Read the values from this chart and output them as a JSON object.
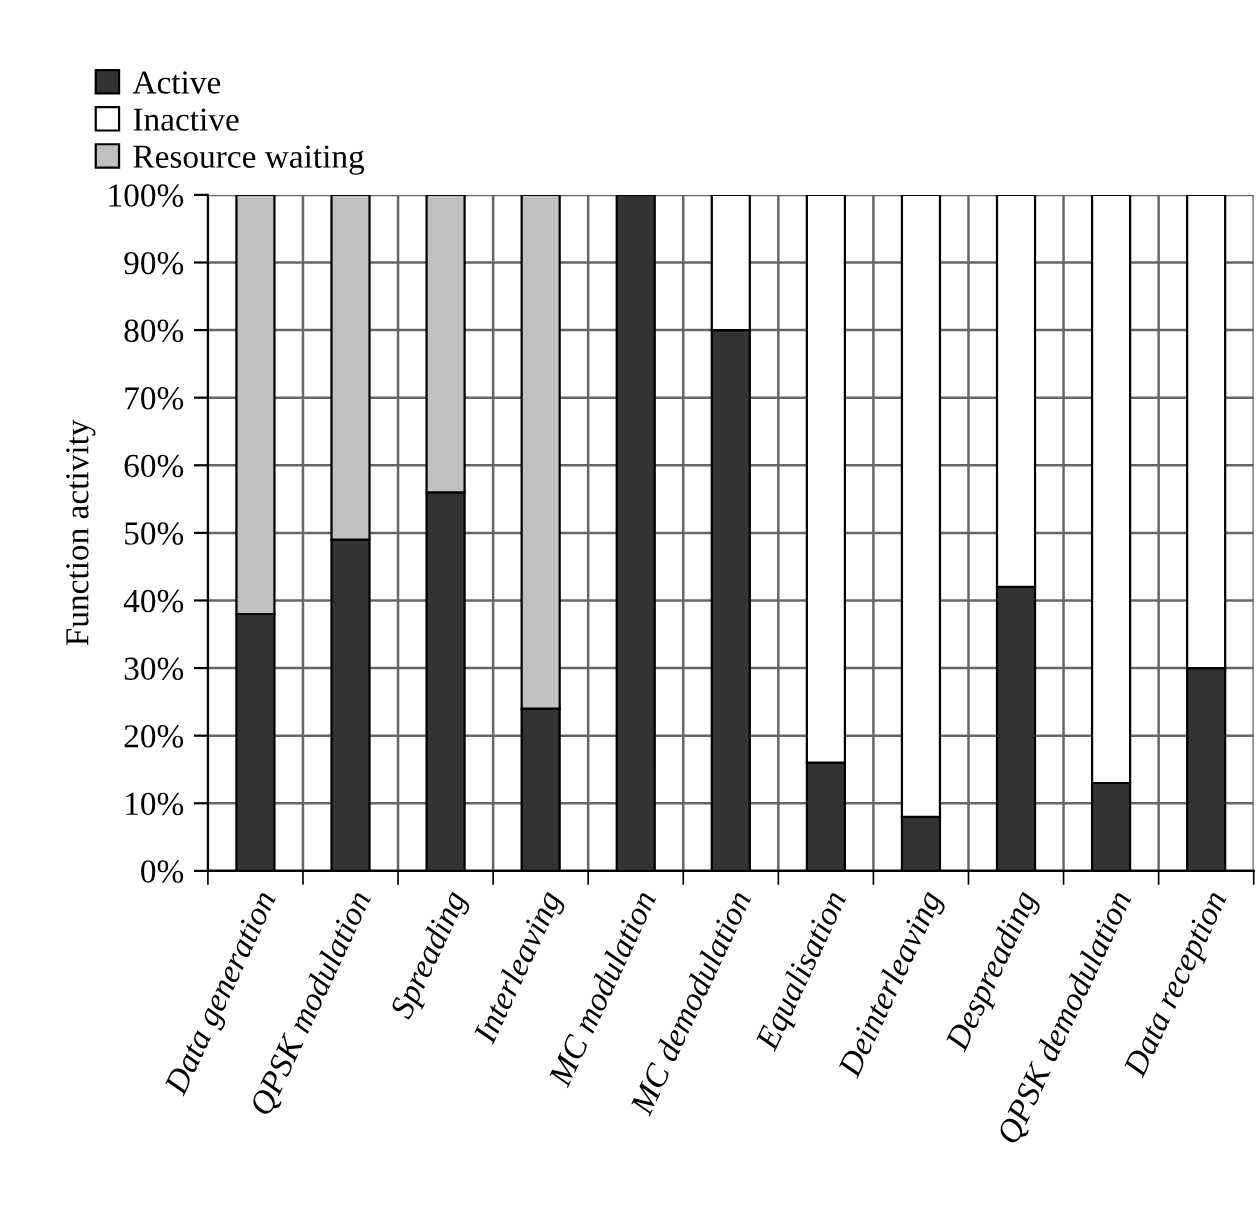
{
  "chart_data": {
    "type": "bar",
    "stacked": true,
    "ylabel": "Function activity",
    "categories": [
      "Data generation",
      "QPSK modulation",
      "Spreading",
      "Interleaving",
      "MC modulation",
      "MC demodulation",
      "Equalisation",
      "Deinterleaving",
      "Despreading",
      "QPSK demodulation",
      "Data reception"
    ],
    "series": [
      {
        "name": "Active",
        "color": "#333333",
        "values": [
          38,
          49,
          56,
          24,
          100,
          80,
          16,
          8,
          42,
          13,
          30
        ]
      },
      {
        "name": "Inactive",
        "color": "#ffffff",
        "values": [
          0,
          0,
          0,
          0,
          0,
          20,
          84,
          92,
          58,
          87,
          70
        ]
      },
      {
        "name": "Resource waiting",
        "color": "#c0c0c0",
        "values": [
          62,
          51,
          44,
          76,
          0,
          0,
          0,
          0,
          0,
          0,
          0
        ]
      }
    ],
    "ylim": [
      0,
      100
    ],
    "yticks": [
      {
        "value": 0,
        "label": "0%"
      },
      {
        "value": 10,
        "label": "10%"
      },
      {
        "value": 20,
        "label": "20%"
      },
      {
        "value": 30,
        "label": "30%"
      },
      {
        "value": 40,
        "label": "40%"
      },
      {
        "value": 50,
        "label": "50%"
      },
      {
        "value": 60,
        "label": "60%"
      },
      {
        "value": 70,
        "label": "70%"
      },
      {
        "value": 80,
        "label": "80%"
      },
      {
        "value": 90,
        "label": "90%"
      },
      {
        "value": 100,
        "label": "100%"
      }
    ],
    "grid": true,
    "legend": "top left"
  }
}
